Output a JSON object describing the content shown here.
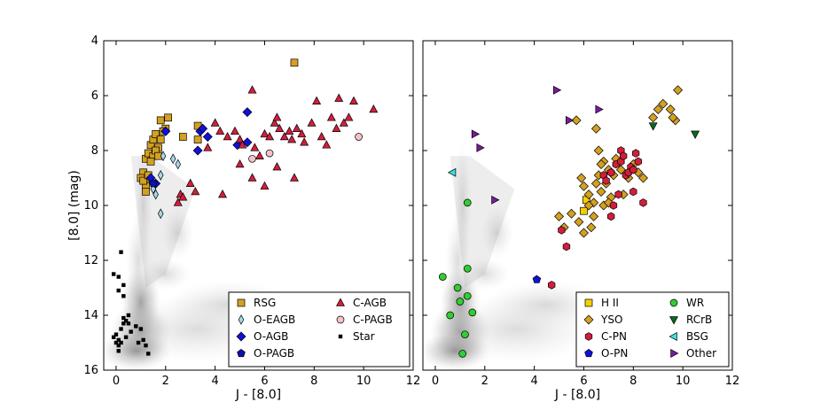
{
  "chart_data": [
    {
      "type": "scatter",
      "panel": "left",
      "xlabel": "J - [8.0]",
      "ylabel": "[8.0] (mag)",
      "xlim": [
        -0.5,
        12
      ],
      "ylim": [
        16,
        4
      ],
      "y_inverted": true,
      "xticks": [
        "0",
        "2",
        "4",
        "6",
        "8",
        "10",
        "12"
      ],
      "yticks": [
        "4",
        "6",
        "8",
        "10",
        "12",
        "14",
        "16"
      ],
      "legend_position": "bottom-right",
      "legend_columns": 2,
      "series": [
        {
          "name": "RSG",
          "marker": "square",
          "color": "#d4a020",
          "points": [
            [
              1.2,
              8.3
            ],
            [
              1.3,
              8.1
            ],
            [
              1.4,
              7.8
            ],
            [
              1.5,
              7.6
            ],
            [
              1.6,
              7.4
            ],
            [
              1.7,
              7.9
            ],
            [
              1.5,
              8.2
            ],
            [
              1.4,
              8.4
            ],
            [
              1.8,
              7.6
            ],
            [
              2.0,
              7.2
            ],
            [
              2.1,
              6.8
            ],
            [
              1.8,
              6.9
            ],
            [
              1.9,
              7.3
            ],
            [
              1.6,
              8.0
            ],
            [
              1.7,
              8.2
            ],
            [
              1.3,
              9.0
            ],
            [
              1.2,
              9.3
            ],
            [
              1.1,
              8.8
            ],
            [
              1.0,
              9.0
            ],
            [
              1.2,
              9.5
            ],
            [
              1.1,
              9.1
            ],
            [
              1.3,
              8.9
            ],
            [
              2.7,
              7.5
            ],
            [
              3.3,
              7.1
            ],
            [
              3.3,
              7.6
            ],
            [
              7.2,
              4.8
            ]
          ]
        },
        {
          "name": "O-EAGB",
          "marker": "thin_diamond",
          "color": "#a8d8e8",
          "points": [
            [
              1.5,
              9.4
            ],
            [
              1.6,
              9.6
            ],
            [
              1.8,
              10.3
            ],
            [
              2.3,
              8.3
            ],
            [
              2.5,
              8.5
            ],
            [
              1.8,
              8.9
            ],
            [
              1.9,
              8.2
            ]
          ]
        },
        {
          "name": "O-AGB",
          "marker": "diamond",
          "color": "#1010dd",
          "points": [
            [
              2.0,
              7.3
            ],
            [
              3.4,
              7.3
            ],
            [
              3.5,
              7.2
            ],
            [
              3.3,
              8.0
            ],
            [
              5.3,
              6.6
            ],
            [
              4.9,
              7.8
            ],
            [
              5.3,
              7.7
            ],
            [
              1.4,
              9.0
            ],
            [
              1.6,
              9.2
            ],
            [
              3.7,
              7.5
            ]
          ]
        },
        {
          "name": "O-PAGB",
          "marker": "pentagon",
          "color": "#1010aa",
          "points": [
            [
              1.5,
              9.2
            ]
          ]
        },
        {
          "name": "C-AGB",
          "marker": "triangle",
          "color": "#d21e3c",
          "points": [
            [
              5.5,
              5.8
            ],
            [
              4.0,
              7.0
            ],
            [
              4.2,
              7.3
            ],
            [
              4.5,
              7.5
            ],
            [
              4.8,
              7.3
            ],
            [
              5.0,
              7.6
            ],
            [
              5.1,
              7.8
            ],
            [
              5.6,
              7.9
            ],
            [
              5.8,
              8.2
            ],
            [
              6.0,
              7.4
            ],
            [
              6.2,
              7.5
            ],
            [
              6.4,
              7.0
            ],
            [
              6.5,
              6.8
            ],
            [
              6.6,
              7.2
            ],
            [
              6.8,
              7.5
            ],
            [
              7.0,
              7.3
            ],
            [
              7.1,
              7.6
            ],
            [
              7.3,
              7.2
            ],
            [
              7.5,
              7.4
            ],
            [
              7.6,
              7.7
            ],
            [
              7.9,
              7.0
            ],
            [
              8.1,
              6.2
            ],
            [
              8.3,
              7.5
            ],
            [
              8.5,
              7.8
            ],
            [
              8.7,
              6.8
            ],
            [
              8.9,
              7.2
            ],
            [
              9.0,
              6.1
            ],
            [
              9.2,
              7.0
            ],
            [
              9.4,
              6.8
            ],
            [
              9.6,
              6.2
            ],
            [
              10.4,
              6.5
            ],
            [
              3.7,
              7.9
            ],
            [
              3.0,
              9.2
            ],
            [
              3.2,
              9.5
            ],
            [
              2.6,
              9.6
            ],
            [
              2.5,
              9.9
            ],
            [
              2.7,
              9.7
            ],
            [
              4.3,
              9.6
            ],
            [
              5.0,
              8.5
            ],
            [
              5.5,
              9.0
            ],
            [
              6.0,
              9.3
            ],
            [
              6.5,
              8.6
            ],
            [
              7.2,
              9.0
            ]
          ]
        },
        {
          "name": "C-PAGB",
          "marker": "circle",
          "color": "#f5c2c8",
          "points": [
            [
              5.5,
              8.3
            ],
            [
              6.2,
              8.1
            ],
            [
              9.8,
              7.5
            ]
          ]
        },
        {
          "name": "Star",
          "marker": "small_square",
          "color": "#000000",
          "points": [
            [
              -0.1,
              12.5
            ],
            [
              0.1,
              12.6
            ],
            [
              0.2,
              11.7
            ],
            [
              0.3,
              12.9
            ],
            [
              0.1,
              13.1
            ],
            [
              0.3,
              13.3
            ],
            [
              0.0,
              14.7
            ],
            [
              -0.1,
              14.8
            ],
            [
              0.1,
              14.9
            ],
            [
              0.2,
              14.5
            ],
            [
              0.3,
              14.3
            ],
            [
              0.4,
              14.2
            ],
            [
              0.5,
              14.3
            ],
            [
              0.6,
              14.6
            ],
            [
              0.8,
              14.4
            ],
            [
              1.0,
              14.5
            ],
            [
              1.1,
              14.9
            ],
            [
              0.9,
              15.0
            ],
            [
              1.2,
              15.1
            ],
            [
              1.3,
              15.4
            ],
            [
              0.0,
              15.0
            ],
            [
              0.1,
              15.1
            ],
            [
              0.1,
              15.3
            ],
            [
              0.2,
              15.0
            ],
            [
              0.4,
              14.8
            ],
            [
              0.3,
              14.1
            ],
            [
              0.5,
              14.0
            ]
          ]
        }
      ]
    },
    {
      "type": "scatter",
      "panel": "right",
      "xlabel": "J - [8.0]",
      "ylabel": "",
      "xlim": [
        -0.5,
        12
      ],
      "ylim": [
        16,
        4
      ],
      "y_inverted": true,
      "xticks": [
        "0",
        "2",
        "4",
        "6",
        "8",
        "10",
        "12"
      ],
      "yticks": [],
      "legend_position": "bottom-right",
      "legend_columns": 2,
      "series": [
        {
          "name": "H II",
          "marker": "square",
          "color": "#f5d000",
          "points": [
            [
              6.0,
              10.2
            ],
            [
              6.1,
              9.8
            ]
          ]
        },
        {
          "name": "YSO",
          "marker": "diamond",
          "color": "#d4a020",
          "points": [
            [
              5.7,
              6.9
            ],
            [
              6.5,
              7.2
            ],
            [
              6.6,
              8.0
            ],
            [
              6.8,
              8.4
            ],
            [
              7.0,
              8.7
            ],
            [
              7.2,
              8.9
            ],
            [
              7.3,
              8.3
            ],
            [
              7.5,
              8.7
            ],
            [
              7.8,
              9.0
            ],
            [
              8.0,
              8.5
            ],
            [
              8.2,
              8.8
            ],
            [
              8.4,
              9.0
            ],
            [
              9.2,
              6.3
            ],
            [
              9.5,
              6.5
            ],
            [
              9.7,
              6.9
            ],
            [
              9.8,
              5.8
            ],
            [
              9.6,
              6.8
            ],
            [
              9.0,
              6.5
            ],
            [
              8.8,
              6.8
            ],
            [
              6.0,
              9.3
            ],
            [
              6.2,
              9.6
            ],
            [
              6.4,
              9.9
            ],
            [
              6.7,
              9.5
            ],
            [
              6.9,
              9.2
            ],
            [
              7.1,
              9.7
            ],
            [
              5.5,
              10.3
            ],
            [
              5.8,
              10.6
            ],
            [
              6.0,
              11.0
            ],
            [
              6.4,
              10.4
            ],
            [
              6.3,
              10.8
            ],
            [
              6.5,
              9.2
            ],
            [
              6.6,
              8.9
            ],
            [
              5.9,
              9.0
            ],
            [
              6.2,
              10.0
            ],
            [
              6.8,
              10.0
            ],
            [
              7.0,
              9.9
            ],
            [
              5.2,
              10.8
            ],
            [
              5.0,
              10.4
            ],
            [
              6.7,
              8.5
            ],
            [
              7.6,
              9.6
            ]
          ]
        },
        {
          "name": "C-PN",
          "marker": "hexagon",
          "color": "#d21e3c",
          "points": [
            [
              5.1,
              10.9
            ],
            [
              5.3,
              11.5
            ],
            [
              4.7,
              12.9
            ],
            [
              6.8,
              8.9
            ],
            [
              7.1,
              8.8
            ],
            [
              7.3,
              8.5
            ],
            [
              7.5,
              8.0
            ],
            [
              7.5,
              8.4
            ],
            [
              7.6,
              8.2
            ],
            [
              7.7,
              8.9
            ],
            [
              7.9,
              8.6
            ],
            [
              8.1,
              8.1
            ],
            [
              8.2,
              8.4
            ],
            [
              7.8,
              8.8
            ],
            [
              8.0,
              9.5
            ],
            [
              7.2,
              10.0
            ],
            [
              7.1,
              10.4
            ],
            [
              6.9,
              9.1
            ],
            [
              7.4,
              9.6
            ],
            [
              8.4,
              9.9
            ],
            [
              8.0,
              8.7
            ]
          ]
        },
        {
          "name": "O-PN",
          "marker": "pentagon",
          "color": "#1010dd",
          "points": [
            [
              4.1,
              12.7
            ]
          ]
        },
        {
          "name": "WR",
          "marker": "circle",
          "color": "#32cd32",
          "points": [
            [
              1.3,
              9.9
            ],
            [
              0.3,
              12.6
            ],
            [
              0.9,
              13.0
            ],
            [
              1.3,
              12.3
            ],
            [
              1.3,
              13.3
            ],
            [
              1.5,
              13.9
            ],
            [
              0.6,
              14.0
            ],
            [
              1.0,
              13.5
            ],
            [
              1.2,
              14.7
            ],
            [
              1.1,
              15.4
            ]
          ]
        },
        {
          "name": "RCrB",
          "marker": "triangle_down",
          "color": "#0a6b1e",
          "points": [
            [
              8.8,
              7.1
            ],
            [
              10.5,
              7.4
            ]
          ]
        },
        {
          "name": "BSG",
          "marker": "triangle_left",
          "color": "#40e0e0",
          "points": [
            [
              0.7,
              8.8
            ]
          ]
        },
        {
          "name": "Other",
          "marker": "triangle_right",
          "color": "#7a1a9a",
          "points": [
            [
              4.9,
              5.8
            ],
            [
              5.4,
              6.9
            ],
            [
              6.6,
              6.5
            ],
            [
              1.6,
              7.4
            ],
            [
              1.8,
              7.9
            ],
            [
              2.4,
              9.8
            ]
          ]
        }
      ]
    }
  ]
}
